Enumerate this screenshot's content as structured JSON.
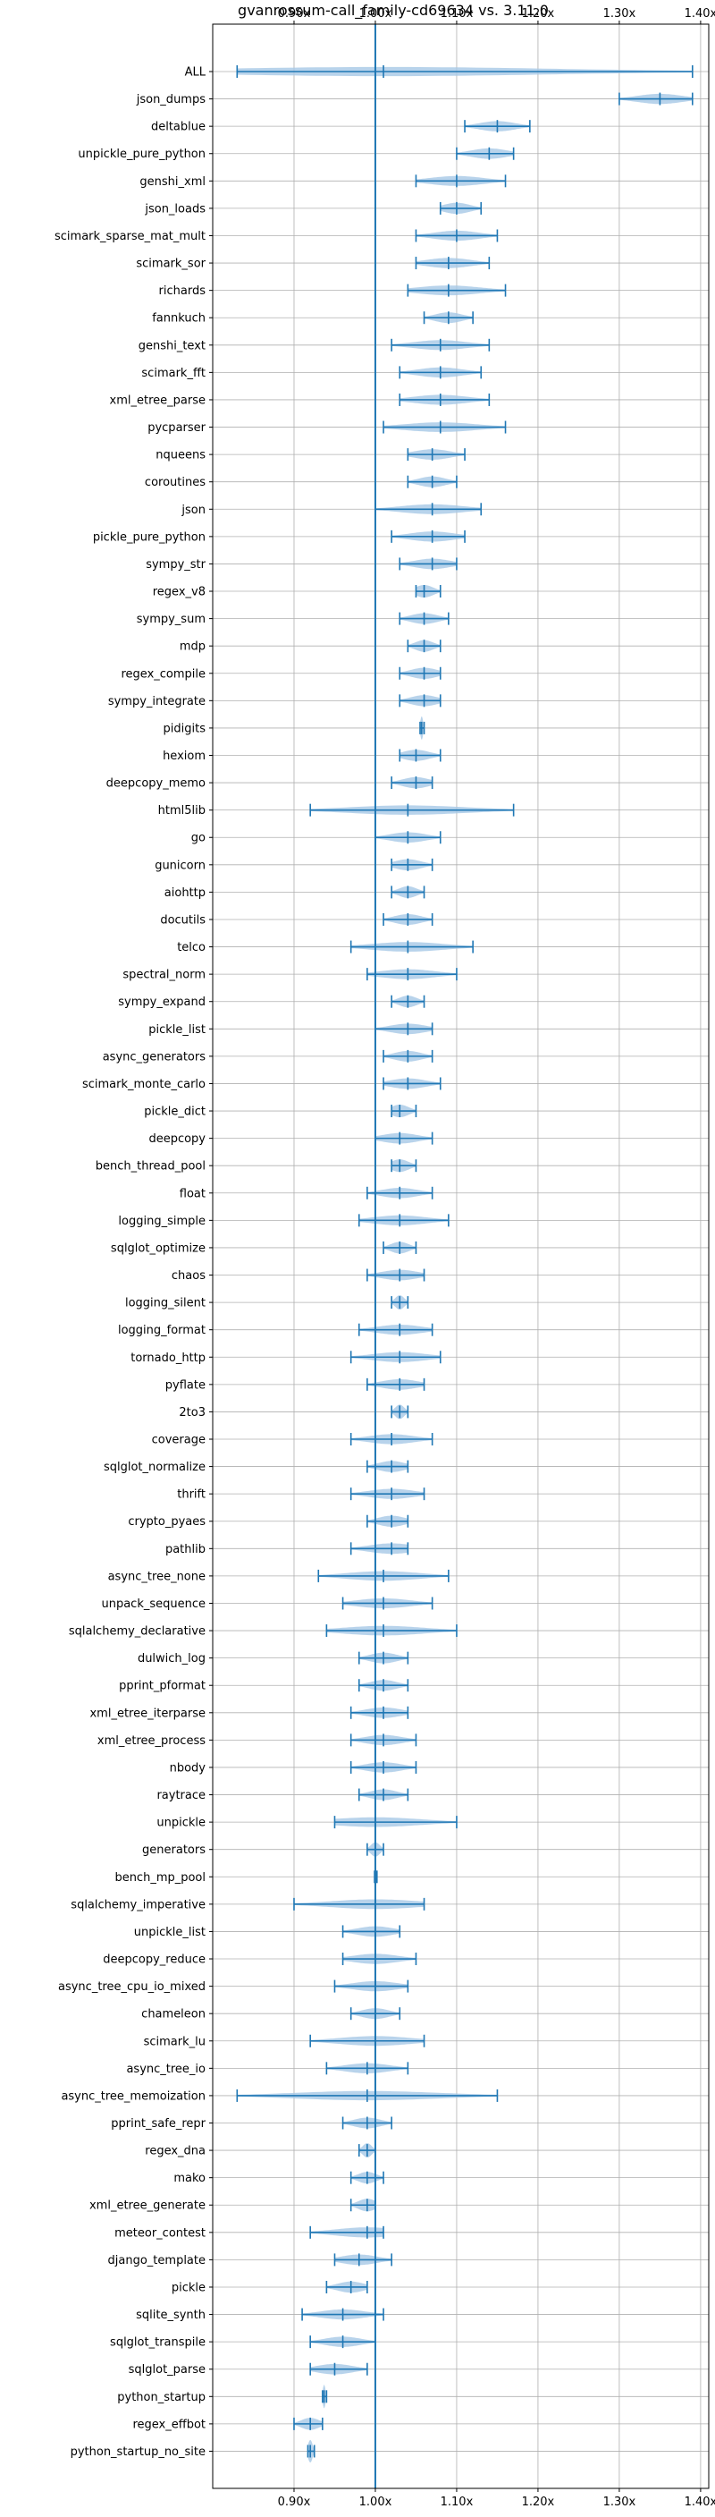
{
  "chart_data": {
    "type": "violin",
    "title": "gvanrossum-call_family-cd69634 vs. 3.11.0",
    "x_ticks": [
      "0.90x",
      "1.00x",
      "1.10x",
      "1.20x",
      "1.30x",
      "1.40x"
    ],
    "x_tick_values": [
      0.9,
      1.0,
      1.1,
      1.2,
      1.3,
      1.4
    ],
    "xlim": [
      0.8,
      1.41
    ],
    "reference_line": 1.0,
    "grid": true,
    "colors": {
      "violin_fill": "#a6c8e6",
      "line": "#1f77b4"
    },
    "benchmarks": [
      {
        "name": "ALL",
        "min": 0.83,
        "median": 1.01,
        "max": 1.39
      },
      {
        "name": "json_dumps",
        "min": 1.3,
        "median": 1.35,
        "max": 1.39
      },
      {
        "name": "deltablue",
        "min": 1.11,
        "median": 1.15,
        "max": 1.19
      },
      {
        "name": "unpickle_pure_python",
        "min": 1.1,
        "median": 1.14,
        "max": 1.17
      },
      {
        "name": "genshi_xml",
        "min": 1.05,
        "median": 1.1,
        "max": 1.16
      },
      {
        "name": "json_loads",
        "min": 1.08,
        "median": 1.1,
        "max": 1.13
      },
      {
        "name": "scimark_sparse_mat_mult",
        "min": 1.05,
        "median": 1.1,
        "max": 1.15
      },
      {
        "name": "scimark_sor",
        "min": 1.05,
        "median": 1.09,
        "max": 1.14
      },
      {
        "name": "richards",
        "min": 1.04,
        "median": 1.09,
        "max": 1.16
      },
      {
        "name": "fannkuch",
        "min": 1.06,
        "median": 1.09,
        "max": 1.12
      },
      {
        "name": "genshi_text",
        "min": 1.02,
        "median": 1.08,
        "max": 1.14
      },
      {
        "name": "scimark_fft",
        "min": 1.03,
        "median": 1.08,
        "max": 1.13
      },
      {
        "name": "xml_etree_parse",
        "min": 1.03,
        "median": 1.08,
        "max": 1.14
      },
      {
        "name": "pycparser",
        "min": 1.01,
        "median": 1.08,
        "max": 1.16
      },
      {
        "name": "nqueens",
        "min": 1.04,
        "median": 1.07,
        "max": 1.11
      },
      {
        "name": "coroutines",
        "min": 1.04,
        "median": 1.07,
        "max": 1.1
      },
      {
        "name": "json",
        "min": 1.0,
        "median": 1.07,
        "max": 1.13
      },
      {
        "name": "pickle_pure_python",
        "min": 1.02,
        "median": 1.07,
        "max": 1.11
      },
      {
        "name": "sympy_str",
        "min": 1.03,
        "median": 1.07,
        "max": 1.1
      },
      {
        "name": "regex_v8",
        "min": 1.05,
        "median": 1.06,
        "max": 1.08
      },
      {
        "name": "sympy_sum",
        "min": 1.03,
        "median": 1.06,
        "max": 1.09
      },
      {
        "name": "mdp",
        "min": 1.04,
        "median": 1.06,
        "max": 1.08
      },
      {
        "name": "regex_compile",
        "min": 1.03,
        "median": 1.06,
        "max": 1.08
      },
      {
        "name": "sympy_integrate",
        "min": 1.03,
        "median": 1.06,
        "max": 1.08
      },
      {
        "name": "pidigits",
        "min": 1.055,
        "median": 1.057,
        "max": 1.06
      },
      {
        "name": "hexiom",
        "min": 1.03,
        "median": 1.05,
        "max": 1.08
      },
      {
        "name": "deepcopy_memo",
        "min": 1.02,
        "median": 1.05,
        "max": 1.07
      },
      {
        "name": "html5lib",
        "min": 0.92,
        "median": 1.04,
        "max": 1.17
      },
      {
        "name": "go",
        "min": 1.0,
        "median": 1.04,
        "max": 1.08
      },
      {
        "name": "gunicorn",
        "min": 1.02,
        "median": 1.04,
        "max": 1.07
      },
      {
        "name": "aiohttp",
        "min": 1.02,
        "median": 1.04,
        "max": 1.06
      },
      {
        "name": "docutils",
        "min": 1.01,
        "median": 1.04,
        "max": 1.07
      },
      {
        "name": "telco",
        "min": 0.97,
        "median": 1.04,
        "max": 1.12
      },
      {
        "name": "spectral_norm",
        "min": 0.99,
        "median": 1.04,
        "max": 1.1
      },
      {
        "name": "sympy_expand",
        "min": 1.02,
        "median": 1.04,
        "max": 1.06
      },
      {
        "name": "pickle_list",
        "min": 1.0,
        "median": 1.04,
        "max": 1.07
      },
      {
        "name": "async_generators",
        "min": 1.01,
        "median": 1.04,
        "max": 1.07
      },
      {
        "name": "scimark_monte_carlo",
        "min": 1.01,
        "median": 1.04,
        "max": 1.08
      },
      {
        "name": "pickle_dict",
        "min": 1.02,
        "median": 1.03,
        "max": 1.05
      },
      {
        "name": "deepcopy",
        "min": 1.0,
        "median": 1.03,
        "max": 1.07
      },
      {
        "name": "bench_thread_pool",
        "min": 1.02,
        "median": 1.03,
        "max": 1.05
      },
      {
        "name": "float",
        "min": 0.99,
        "median": 1.03,
        "max": 1.07
      },
      {
        "name": "logging_simple",
        "min": 0.98,
        "median": 1.03,
        "max": 1.09
      },
      {
        "name": "sqlglot_optimize",
        "min": 1.01,
        "median": 1.03,
        "max": 1.05
      },
      {
        "name": "chaos",
        "min": 0.99,
        "median": 1.03,
        "max": 1.06
      },
      {
        "name": "logging_silent",
        "min": 1.02,
        "median": 1.03,
        "max": 1.04
      },
      {
        "name": "logging_format",
        "min": 0.98,
        "median": 1.03,
        "max": 1.07
      },
      {
        "name": "tornado_http",
        "min": 0.97,
        "median": 1.03,
        "max": 1.08
      },
      {
        "name": "pyflate",
        "min": 0.99,
        "median": 1.03,
        "max": 1.06
      },
      {
        "name": "2to3",
        "min": 1.02,
        "median": 1.03,
        "max": 1.04
      },
      {
        "name": "coverage",
        "min": 0.97,
        "median": 1.02,
        "max": 1.07
      },
      {
        "name": "sqlglot_normalize",
        "min": 0.99,
        "median": 1.02,
        "max": 1.04
      },
      {
        "name": "thrift",
        "min": 0.97,
        "median": 1.02,
        "max": 1.06
      },
      {
        "name": "crypto_pyaes",
        "min": 0.99,
        "median": 1.02,
        "max": 1.04
      },
      {
        "name": "pathlib",
        "min": 0.97,
        "median": 1.02,
        "max": 1.04
      },
      {
        "name": "async_tree_none",
        "min": 0.93,
        "median": 1.01,
        "max": 1.09
      },
      {
        "name": "unpack_sequence",
        "min": 0.96,
        "median": 1.01,
        "max": 1.07
      },
      {
        "name": "sqlalchemy_declarative",
        "min": 0.94,
        "median": 1.01,
        "max": 1.1
      },
      {
        "name": "dulwich_log",
        "min": 0.98,
        "median": 1.01,
        "max": 1.04
      },
      {
        "name": "pprint_pformat",
        "min": 0.98,
        "median": 1.01,
        "max": 1.04
      },
      {
        "name": "xml_etree_iterparse",
        "min": 0.97,
        "median": 1.01,
        "max": 1.04
      },
      {
        "name": "xml_etree_process",
        "min": 0.97,
        "median": 1.01,
        "max": 1.05
      },
      {
        "name": "nbody",
        "min": 0.97,
        "median": 1.01,
        "max": 1.05
      },
      {
        "name": "raytrace",
        "min": 0.98,
        "median": 1.01,
        "max": 1.04
      },
      {
        "name": "unpickle",
        "min": 0.95,
        "median": 1.0,
        "max": 1.1
      },
      {
        "name": "generators",
        "min": 0.99,
        "median": 1.0,
        "max": 1.01
      },
      {
        "name": "bench_mp_pool",
        "min": 0.999,
        "median": 1.0,
        "max": 1.002
      },
      {
        "name": "sqlalchemy_imperative",
        "min": 0.9,
        "median": 1.0,
        "max": 1.06
      },
      {
        "name": "unpickle_list",
        "min": 0.96,
        "median": 1.0,
        "max": 1.03
      },
      {
        "name": "deepcopy_reduce",
        "min": 0.96,
        "median": 1.0,
        "max": 1.05
      },
      {
        "name": "async_tree_cpu_io_mixed",
        "min": 0.95,
        "median": 1.0,
        "max": 1.04
      },
      {
        "name": "chameleon",
        "min": 0.97,
        "median": 1.0,
        "max": 1.03
      },
      {
        "name": "scimark_lu",
        "min": 0.92,
        "median": 1.0,
        "max": 1.06
      },
      {
        "name": "async_tree_io",
        "min": 0.94,
        "median": 0.99,
        "max": 1.04
      },
      {
        "name": "async_tree_memoization",
        "min": 0.83,
        "median": 0.99,
        "max": 1.15
      },
      {
        "name": "pprint_safe_repr",
        "min": 0.96,
        "median": 0.99,
        "max": 1.02
      },
      {
        "name": "regex_dna",
        "min": 0.98,
        "median": 0.99,
        "max": 1.0
      },
      {
        "name": "mako",
        "min": 0.97,
        "median": 0.99,
        "max": 1.01
      },
      {
        "name": "xml_etree_generate",
        "min": 0.97,
        "median": 0.99,
        "max": 1.0
      },
      {
        "name": "meteor_contest",
        "min": 0.92,
        "median": 0.99,
        "max": 1.01
      },
      {
        "name": "django_template",
        "min": 0.95,
        "median": 0.98,
        "max": 1.02
      },
      {
        "name": "pickle",
        "min": 0.94,
        "median": 0.97,
        "max": 0.99
      },
      {
        "name": "sqlite_synth",
        "min": 0.91,
        "median": 0.96,
        "max": 1.01
      },
      {
        "name": "sqlglot_transpile",
        "min": 0.92,
        "median": 0.96,
        "max": 1.0
      },
      {
        "name": "sqlglot_parse",
        "min": 0.92,
        "median": 0.95,
        "max": 0.99
      },
      {
        "name": "python_startup",
        "min": 0.935,
        "median": 0.937,
        "max": 0.94
      },
      {
        "name": "regex_effbot",
        "min": 0.9,
        "median": 0.92,
        "max": 0.935
      },
      {
        "name": "python_startup_no_site",
        "min": 0.917,
        "median": 0.92,
        "max": 0.925
      }
    ]
  }
}
